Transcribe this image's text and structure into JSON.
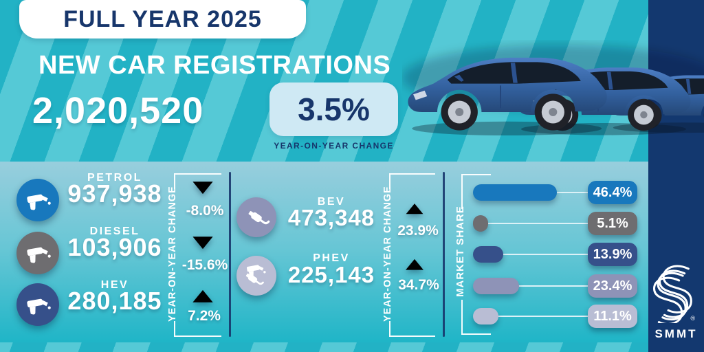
{
  "header": {
    "badge": "FULL YEAR 2025",
    "title": "NEW CAR REGISTRATIONS",
    "total": "2,020,520",
    "change": "3.5%",
    "change_caption": "YEAR-ON-YEAR CHANGE"
  },
  "colors": {
    "petrol": "#1878bd",
    "diesel": "#6e6d70",
    "hev": "#36508a",
    "bev": "#8e93b7",
    "phev": "#b9bdd4",
    "navy_text": "#17366b",
    "navy_band": "#13386f",
    "teal_bg": "#22b2c5",
    "teal_stripe": "#55c9d6",
    "pill_light": "#cfe9f4",
    "panel_top": "#98cedd",
    "panel_bottom": "#1fb5c7"
  },
  "panel": {
    "yoy_axis_label": "YEAR-ON-YEAR CHANGE",
    "market_share_axis_label": "MARKET SHARE",
    "fuels": [
      {
        "label": "PETROL",
        "value": "937,938",
        "change": "-8.0%"
      },
      {
        "label": "DIESEL",
        "value": "103,906",
        "change": "-15.6%"
      },
      {
        "label": "HEV",
        "value": "280,185",
        "change": "7.2%"
      }
    ],
    "evs": [
      {
        "label": "BEV",
        "value": "473,348",
        "change": "23.9%"
      },
      {
        "label": "PHEV",
        "value": "225,143",
        "change": "34.7%"
      }
    ],
    "market_share": [
      {
        "value": "46.4%",
        "pct": 46.4
      },
      {
        "value": "5.1%",
        "pct": 5.1
      },
      {
        "value": "13.9%",
        "pct": 13.9
      },
      {
        "value": "23.4%",
        "pct": 23.4
      },
      {
        "value": "11.1%",
        "pct": 11.1
      }
    ]
  },
  "brand": {
    "name": "SMMT",
    "registered_mark": "®"
  },
  "chart_data": {
    "type": "table",
    "title": "Full Year 2025 UK new car registrations",
    "total_registrations": 2020520,
    "total_yoy_change_pct": 3.5,
    "categories": [
      "PETROL",
      "DIESEL",
      "HEV",
      "BEV",
      "PHEV"
    ],
    "series": [
      {
        "name": "registrations",
        "values": [
          937938,
          103906,
          280185,
          473348,
          225143
        ]
      },
      {
        "name": "yoy_change_pct",
        "values": [
          -8.0,
          -15.6,
          7.2,
          23.9,
          34.7
        ]
      },
      {
        "name": "market_share_pct",
        "values": [
          46.4,
          5.1,
          13.9,
          23.4,
          11.1
        ]
      }
    ],
    "legend_position": "none",
    "grid": false
  }
}
